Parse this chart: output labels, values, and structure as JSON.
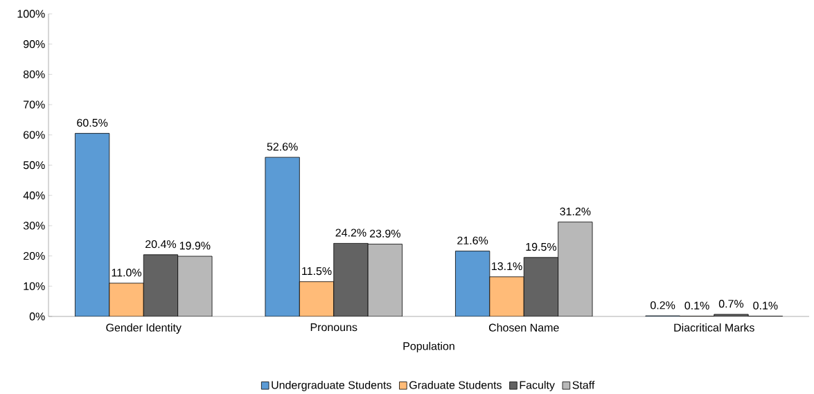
{
  "chart_data": {
    "type": "bar",
    "xlabel": "Population",
    "categories": [
      "Gender Identity",
      "Pronouns",
      "Chosen Name",
      "Diacritical Marks"
    ],
    "series": [
      {
        "name": "Undergraduate Students",
        "color": "#5b9bd5",
        "values": [
          60.5,
          52.6,
          21.6,
          0.2
        ],
        "value_labels": [
          "60.5%",
          "52.6%",
          "21.6%",
          "0.2%"
        ]
      },
      {
        "name": "Graduate Students",
        "color": "#ffbb78",
        "values": [
          11.0,
          11.5,
          13.1,
          0.1
        ],
        "value_labels": [
          "11.0%",
          "11.5%",
          "13.1%",
          "0.1%"
        ]
      },
      {
        "name": "Faculty",
        "color": "#636363",
        "values": [
          20.4,
          24.2,
          19.5,
          0.7
        ],
        "value_labels": [
          "20.4%",
          "24.2%",
          "19.5%",
          "0.7%"
        ]
      },
      {
        "name": "Staff",
        "color": "#b8b8b8",
        "values": [
          19.9,
          23.9,
          31.2,
          0.1
        ],
        "value_labels": [
          "19.9%",
          "23.9%",
          "31.2%",
          "0.1%"
        ]
      }
    ],
    "ylim": [
      0,
      100
    ],
    "yticks": [
      {
        "value": 0,
        "label": "0%"
      },
      {
        "value": 10,
        "label": "10%"
      },
      {
        "value": 20,
        "label": "20%"
      },
      {
        "value": 30,
        "label": "30%"
      },
      {
        "value": 40,
        "label": "40%"
      },
      {
        "value": 50,
        "label": "50%"
      },
      {
        "value": 60,
        "label": "60%"
      },
      {
        "value": 70,
        "label": "70%"
      },
      {
        "value": 80,
        "label": "80%"
      },
      {
        "value": 90,
        "label": "90%"
      },
      {
        "value": 100,
        "label": "100%"
      }
    ],
    "grid": false,
    "legend": "bottom"
  }
}
